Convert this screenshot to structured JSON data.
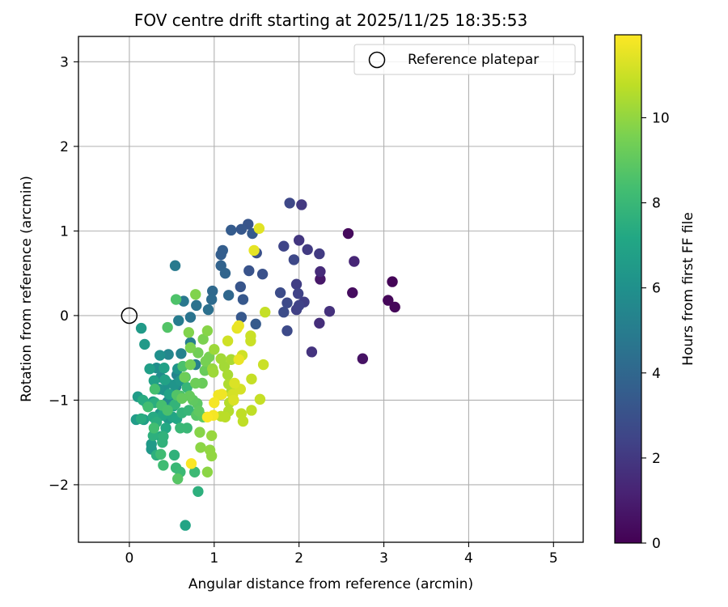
{
  "chart_data": {
    "type": "scatter",
    "title": "FOV centre drift starting at 2025/11/25 18:35:53",
    "xlabel": "Angular distance from reference (arcmin)",
    "ylabel": "Rotation from reference (arcmin)",
    "xlim": [
      -0.6,
      5.35
    ],
    "ylim": [
      -2.68,
      3.3
    ],
    "xticks": [
      "0",
      "1",
      "2",
      "3",
      "4",
      "5"
    ],
    "yticks": [
      "−2",
      "−1",
      "0",
      "1",
      "2",
      "3"
    ],
    "grid": true,
    "legend": {
      "placement": "top-right",
      "entries": [
        "Reference platepar"
      ]
    },
    "reference_point": {
      "x": 0,
      "y": 0
    },
    "colorbar": {
      "label": "Hours from first FF file",
      "colormap": "viridis",
      "range": [
        0,
        11.95
      ],
      "ticks": [
        "0",
        "2",
        "4",
        "6",
        "8",
        "10"
      ]
    },
    "points": [
      [
        3.1,
        0.4,
        0.1
      ],
      [
        3.05,
        0.18,
        0.2
      ],
      [
        3.13,
        0.1,
        0.2
      ],
      [
        2.58,
        0.97,
        0.3
      ],
      [
        2.63,
        0.27,
        0.4
      ],
      [
        2.75,
        -0.51,
        0.6
      ],
      [
        2.25,
        0.43,
        0.8
      ],
      [
        2.65,
        0.64,
        1.3
      ],
      [
        2.25,
        0.52,
        1.5
      ],
      [
        2.36,
        0.05,
        1.7
      ],
      [
        2.24,
        -0.09,
        1.6
      ],
      [
        2.15,
        -0.43,
        1.8
      ],
      [
        2.0,
        0.89,
        1.9
      ],
      [
        2.03,
        1.31,
        2.0
      ],
      [
        2.1,
        0.78,
        2.1
      ],
      [
        2.24,
        0.73,
        2.1
      ],
      [
        2.06,
        0.16,
        2.2
      ],
      [
        1.97,
        0.37,
        2.2
      ],
      [
        1.99,
        0.26,
        2.4
      ],
      [
        1.97,
        0.07,
        2.3
      ],
      [
        2.0,
        0.12,
        2.4
      ],
      [
        1.89,
        1.33,
        2.6
      ],
      [
        1.94,
        0.66,
        2.6
      ],
      [
        1.82,
        0.82,
        2.5
      ],
      [
        1.86,
        0.15,
        2.7
      ],
      [
        1.86,
        -0.18,
        2.7
      ],
      [
        1.78,
        0.27,
        2.8
      ],
      [
        1.82,
        0.04,
        2.8
      ],
      [
        1.57,
        0.49,
        3.0
      ],
      [
        1.5,
        0.74,
        3.0
      ],
      [
        1.41,
        0.53,
        3.1
      ],
      [
        1.31,
        0.34,
        3.2
      ],
      [
        1.34,
        0.19,
        3.3
      ],
      [
        1.32,
        -0.02,
        3.3
      ],
      [
        1.49,
        -0.1,
        3.4
      ],
      [
        1.4,
        1.08,
        3.2
      ],
      [
        1.32,
        1.02,
        3.3
      ],
      [
        1.45,
        0.97,
        3.4
      ],
      [
        1.2,
        1.01,
        3.5
      ],
      [
        1.1,
        0.77,
        3.6
      ],
      [
        1.08,
        0.72,
        3.6
      ],
      [
        1.08,
        0.59,
        3.8
      ],
      [
        1.13,
        0.5,
        3.9
      ],
      [
        1.17,
        0.24,
        4.0
      ],
      [
        0.98,
        0.29,
        4.1
      ],
      [
        0.97,
        0.19,
        4.2
      ],
      [
        0.93,
        0.07,
        4.4
      ],
      [
        0.79,
        0.12,
        4.5
      ],
      [
        0.72,
        -0.02,
        4.6
      ],
      [
        0.64,
        0.17,
        4.8
      ],
      [
        0.54,
        0.59,
        4.9
      ],
      [
        0.58,
        -0.06,
        5.0
      ],
      [
        0.72,
        -0.32,
        5.1
      ],
      [
        0.78,
        -0.58,
        5.2
      ],
      [
        0.61,
        -0.45,
        5.3
      ],
      [
        0.56,
        -0.7,
        5.4
      ],
      [
        0.46,
        -0.46,
        5.5
      ],
      [
        0.55,
        -0.84,
        5.5
      ],
      [
        0.49,
        -0.97,
        5.6
      ],
      [
        0.45,
        -1.02,
        5.7
      ],
      [
        0.37,
        -0.73,
        5.8
      ],
      [
        0.32,
        -0.62,
        5.9
      ],
      [
        0.36,
        -0.47,
        6.0
      ],
      [
        0.45,
        -0.8,
        6.1
      ],
      [
        0.41,
        -0.88,
        6.1
      ],
      [
        0.57,
        -0.63,
        6.2
      ],
      [
        0.53,
        -0.82,
        6.2
      ],
      [
        0.6,
        -0.77,
        6.3
      ],
      [
        0.35,
        -0.87,
        6.2
      ],
      [
        0.28,
        -1.02,
        6.3
      ],
      [
        0.36,
        -1.16,
        6.3
      ],
      [
        0.46,
        -1.22,
        6.4
      ],
      [
        0.26,
        -1.58,
        6.4
      ],
      [
        0.26,
        -1.52,
        6.5
      ],
      [
        0.18,
        -0.34,
        6.5
      ],
      [
        0.14,
        -0.15,
        6.5
      ],
      [
        0.1,
        -0.96,
        6.6
      ],
      [
        0.08,
        -1.23,
        6.6
      ],
      [
        0.17,
        -1.23,
        6.7
      ],
      [
        0.24,
        -0.63,
        6.7
      ],
      [
        0.29,
        -0.77,
        6.8
      ],
      [
        0.41,
        -0.62,
        6.8
      ],
      [
        0.42,
        -0.76,
        6.9
      ],
      [
        0.47,
        -0.93,
        6.9
      ],
      [
        0.52,
        -1.07,
        7.0
      ],
      [
        0.51,
        -1.2,
        7.0
      ],
      [
        0.56,
        -1.22,
        7.1
      ],
      [
        0.39,
        -1.18,
        7.1
      ],
      [
        0.43,
        -1.33,
        7.2
      ],
      [
        0.37,
        -1.43,
        7.2
      ],
      [
        0.28,
        -1.2,
        7.3
      ],
      [
        0.21,
        -1.05,
        7.3
      ],
      [
        0.14,
        -1.22,
        7.4
      ],
      [
        0.16,
        -1.0,
        7.4
      ],
      [
        0.3,
        -1.03,
        7.5
      ],
      [
        0.32,
        -1.26,
        7.5
      ],
      [
        0.28,
        -1.42,
        7.6
      ],
      [
        0.32,
        -1.65,
        7.6
      ],
      [
        0.39,
        -1.5,
        7.7
      ],
      [
        0.4,
        -1.43,
        7.7
      ],
      [
        0.53,
        -1.65,
        7.7
      ],
      [
        0.66,
        -2.48,
        7.0
      ],
      [
        0.54,
        -1.05,
        7.8
      ],
      [
        0.62,
        -1.15,
        7.8
      ],
      [
        0.68,
        -0.85,
        7.9
      ],
      [
        0.7,
        -1.12,
        7.9
      ],
      [
        0.6,
        -1.33,
        8.0
      ],
      [
        0.68,
        -1.33,
        8.0
      ],
      [
        0.55,
        -1.8,
        8.0
      ],
      [
        0.6,
        -1.85,
        8.1
      ],
      [
        0.77,
        -1.85,
        8.1
      ],
      [
        0.81,
        -2.08,
        7.6
      ],
      [
        0.4,
        -1.77,
        8.2
      ],
      [
        0.37,
        -1.64,
        8.2
      ],
      [
        0.29,
        -1.33,
        8.3
      ],
      [
        0.22,
        -1.08,
        8.3
      ],
      [
        0.3,
        -0.87,
        8.4
      ],
      [
        0.38,
        -1.06,
        8.4
      ],
      [
        0.45,
        -1.12,
        8.5
      ],
      [
        0.6,
        -0.95,
        8.5
      ],
      [
        0.63,
        -0.6,
        8.5
      ],
      [
        0.55,
        0.19,
        8.6
      ],
      [
        0.66,
        -0.73,
        8.6
      ],
      [
        0.45,
        -0.14,
        8.7
      ],
      [
        0.56,
        -0.94,
        8.7
      ],
      [
        0.57,
        -1.93,
        8.8
      ],
      [
        0.79,
        -1.18,
        8.8
      ],
      [
        0.87,
        -1.2,
        8.9
      ],
      [
        0.8,
        -1.04,
        8.9
      ],
      [
        0.82,
        -1.13,
        9.0
      ],
      [
        0.75,
        -1.0,
        9.0
      ],
      [
        0.71,
        -0.95,
        9.1
      ],
      [
        0.62,
        -0.98,
        9.1
      ],
      [
        0.86,
        -0.8,
        9.2
      ],
      [
        0.89,
        -0.65,
        9.2
      ],
      [
        0.78,
        -0.8,
        9.3
      ],
      [
        0.65,
        -0.73,
        9.3
      ],
      [
        0.72,
        -0.58,
        9.4
      ],
      [
        0.81,
        -0.44,
        9.4
      ],
      [
        0.9,
        -0.54,
        9.5
      ],
      [
        0.94,
        -0.49,
        9.5
      ],
      [
        0.87,
        -0.28,
        9.6
      ],
      [
        0.72,
        -0.38,
        9.6
      ],
      [
        0.7,
        -0.2,
        9.7
      ],
      [
        0.78,
        0.25,
        9.7
      ],
      [
        0.92,
        -0.18,
        9.8
      ],
      [
        0.83,
        -1.38,
        9.8
      ],
      [
        0.84,
        -1.56,
        9.9
      ],
      [
        0.92,
        -1.85,
        9.9
      ],
      [
        0.97,
        -1.66,
        10.0
      ],
      [
        0.95,
        -1.59,
        10.0
      ],
      [
        0.97,
        -1.42,
        10.1
      ],
      [
        0.98,
        -0.63,
        10.1
      ],
      [
        1.0,
        -0.4,
        10.2
      ],
      [
        0.99,
        -0.67,
        10.2
      ],
      [
        1.08,
        -0.51,
        10.3
      ],
      [
        1.12,
        -0.6,
        10.3
      ],
      [
        1.2,
        -0.52,
        10.4
      ],
      [
        1.16,
        -0.7,
        10.4
      ],
      [
        1.17,
        -0.81,
        10.5
      ],
      [
        1.2,
        -0.91,
        10.5
      ],
      [
        1.18,
        -1.03,
        10.6
      ],
      [
        1.17,
        -1.13,
        10.6
      ],
      [
        1.13,
        -1.2,
        10.7
      ],
      [
        1.08,
        -1.19,
        10.7
      ],
      [
        1.32,
        -1.16,
        10.8
      ],
      [
        1.34,
        -1.25,
        10.8
      ],
      [
        1.44,
        -1.12,
        10.8
      ],
      [
        1.44,
        -0.75,
        10.9
      ],
      [
        1.54,
        -0.99,
        10.9
      ],
      [
        1.58,
        -0.58,
        11.0
      ],
      [
        1.43,
        -0.24,
        11.0
      ],
      [
        1.43,
        -0.3,
        11.0
      ],
      [
        1.16,
        -0.3,
        11.1
      ],
      [
        1.33,
        -0.47,
        11.1
      ],
      [
        1.31,
        -0.87,
        11.2
      ],
      [
        1.22,
        -0.93,
        11.2
      ],
      [
        1.23,
        -1.0,
        11.3
      ],
      [
        1.24,
        -0.8,
        11.3
      ],
      [
        1.6,
        0.04,
        10.9
      ],
      [
        1.53,
        1.03,
        11.4
      ],
      [
        1.47,
        0.77,
        11.5
      ],
      [
        1.27,
        -0.15,
        11.5
      ],
      [
        1.29,
        -0.12,
        11.6
      ],
      [
        1.29,
        -0.52,
        11.6
      ],
      [
        1.05,
        -0.94,
        11.7
      ],
      [
        1.09,
        -0.93,
        11.7
      ],
      [
        1.0,
        -1.03,
        11.8
      ],
      [
        0.99,
        -1.18,
        11.8
      ],
      [
        0.92,
        -1.2,
        11.9
      ],
      [
        0.73,
        -1.75,
        11.9
      ]
    ]
  }
}
